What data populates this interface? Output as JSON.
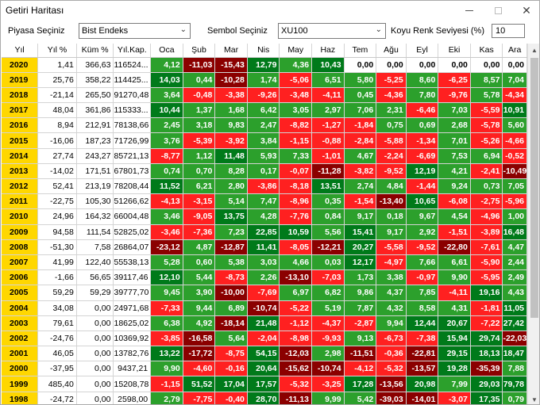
{
  "window": {
    "title": "Getiri Haritası"
  },
  "toolbar": {
    "market_label": "Piyasa Seçiniz",
    "market_value": "Bist Endeks",
    "symbol_label": "Sembol Seçiniz",
    "symbol_value": "XU100",
    "level_label": "Koyu Renk Seviyesi (%)",
    "level_value": "10"
  },
  "colors": {
    "year_bg": "#ffd700",
    "deep_green": "#007a1a",
    "green": "#2ca02c",
    "light_red": "#ff2020",
    "deep_red": "#8b0000",
    "zero": "#ffffff"
  },
  "table": {
    "headers": [
      "Yıl",
      "Yıl %",
      "Küm %",
      "Yıl.Kap.",
      "Oca",
      "Şub",
      "Mar",
      "Nis",
      "May",
      "Haz",
      "Tem",
      "Ağu",
      "Eyl",
      "Eki",
      "Kas",
      "Ara"
    ],
    "rows": [
      [
        "2020",
        "1,41",
        "366,63",
        "116524...",
        "4,12",
        "-11,03",
        "-15,43",
        "12,79",
        "4,36",
        "10,43",
        "0,00",
        "0,00",
        "0,00",
        "0,00",
        "0,00",
        "0,00"
      ],
      [
        "2019",
        "25,76",
        "358,22",
        "114425...",
        "14,03",
        "0,44",
        "-10,28",
        "1,74",
        "-5,06",
        "6,51",
        "5,80",
        "-5,25",
        "8,60",
        "-6,25",
        "8,57",
        "7,04"
      ],
      [
        "2018",
        "-21,14",
        "265,50",
        "91270,48",
        "3,64",
        "-0,48",
        "-3,38",
        "-9,26",
        "-3,48",
        "-4,11",
        "0,45",
        "-4,36",
        "7,80",
        "-9,76",
        "5,78",
        "-4,34"
      ],
      [
        "2017",
        "48,04",
        "361,86",
        "115333...",
        "10,44",
        "1,37",
        "1,68",
        "6,42",
        "3,05",
        "2,97",
        "7,06",
        "2,31",
        "-6,46",
        "7,03",
        "-5,59",
        "10,91"
      ],
      [
        "2016",
        "8,94",
        "212,91",
        "78138,66",
        "2,45",
        "3,18",
        "9,83",
        "2,47",
        "-8,82",
        "-1,27",
        "-1,84",
        "0,75",
        "0,69",
        "2,68",
        "-5,78",
        "5,60"
      ],
      [
        "2015",
        "-16,06",
        "187,23",
        "71726,99",
        "3,76",
        "-5,39",
        "-3,92",
        "3,84",
        "-1,15",
        "-0,88",
        "-2,84",
        "-5,88",
        "-1,34",
        "7,01",
        "-5,26",
        "-4,66"
      ],
      [
        "2014",
        "27,74",
        "243,27",
        "85721,13",
        "-8,77",
        "1,12",
        "11,48",
        "5,93",
        "7,33",
        "-1,01",
        "4,67",
        "-2,24",
        "-6,69",
        "7,53",
        "6,94",
        "-0,52"
      ],
      [
        "2013",
        "-14,02",
        "171,51",
        "67801,73",
        "0,74",
        "0,70",
        "8,28",
        "0,17",
        "-0,07",
        "-11,28",
        "-3,82",
        "-9,52",
        "12,19",
        "4,21",
        "-2,41",
        "-10,49"
      ],
      [
        "2012",
        "52,41",
        "213,19",
        "78208,44",
        "11,52",
        "6,21",
        "2,80",
        "-3,86",
        "-8,18",
        "13,51",
        "2,74",
        "4,84",
        "-1,44",
        "9,24",
        "0,73",
        "7,05"
      ],
      [
        "2011",
        "-22,75",
        "105,30",
        "51266,62",
        "-4,13",
        "-3,15",
        "5,14",
        "7,47",
        "-8,96",
        "0,35",
        "-1,54",
        "-13,40",
        "10,65",
        "-6,08",
        "-2,75",
        "-5,96"
      ],
      [
        "2010",
        "24,96",
        "164,32",
        "66004,48",
        "3,46",
        "-9,05",
        "13,75",
        "4,28",
        "-7,76",
        "0,84",
        "9,17",
        "0,18",
        "9,67",
        "4,54",
        "-4,96",
        "1,00"
      ],
      [
        "2009",
        "94,58",
        "111,54",
        "52825,02",
        "-3,46",
        "-7,36",
        "7,23",
        "22,85",
        "10,59",
        "5,56",
        "15,41",
        "9,17",
        "2,92",
        "-1,51",
        "-3,89",
        "16,48"
      ],
      [
        "2008",
        "-51,30",
        "7,58",
        "26864,07",
        "-23,12",
        "4,87",
        "-12,87",
        "11,41",
        "-8,05",
        "-12,21",
        "20,27",
        "-5,58",
        "-9,52",
        "-22,80",
        "-7,61",
        "4,47"
      ],
      [
        "2007",
        "41,99",
        "122,40",
        "55538,13",
        "5,28",
        "0,60",
        "5,38",
        "3,03",
        "4,66",
        "0,03",
        "12,17",
        "-4,97",
        "7,66",
        "6,61",
        "-5,90",
        "2,44"
      ],
      [
        "2006",
        "-1,66",
        "56,65",
        "39117,46",
        "12,10",
        "5,44",
        "-8,73",
        "2,26",
        "-13,10",
        "-7,03",
        "1,73",
        "3,38",
        "-0,97",
        "9,90",
        "-5,95",
        "2,49"
      ],
      [
        "2005",
        "59,29",
        "59,29",
        "39777,70",
        "9,45",
        "3,90",
        "-10,00",
        "-7,69",
        "6,97",
        "6,82",
        "9,86",
        "4,37",
        "7,85",
        "-4,11",
        "19,16",
        "4,43"
      ],
      [
        "2004",
        "34,08",
        "0,00",
        "24971,68",
        "-7,33",
        "9,44",
        "6,89",
        "-10,74",
        "-5,22",
        "5,19",
        "7,87",
        "4,32",
        "8,58",
        "4,31",
        "-1,81",
        "11,05"
      ],
      [
        "2003",
        "79,61",
        "0,00",
        "18625,02",
        "6,38",
        "4,92",
        "-18,14",
        "21,48",
        "-1,12",
        "-4,37",
        "-2,87",
        "9,94",
        "12,44",
        "20,67",
        "-7,22",
        "27,42"
      ],
      [
        "2002",
        "-24,76",
        "0,00",
        "10369,92",
        "-3,85",
        "-16,58",
        "5,64",
        "-2,04",
        "-8,98",
        "-9,93",
        "9,13",
        "-6,73",
        "-7,38",
        "15,94",
        "29,74",
        "-22,03"
      ],
      [
        "2001",
        "46,05",
        "0,00",
        "13782,76",
        "13,22",
        "-17,72",
        "-8,75",
        "54,15",
        "-12,03",
        "2,98",
        "-11,51",
        "-0,36",
        "-22,81",
        "29,15",
        "18,13",
        "18,47"
      ],
      [
        "2000",
        "-37,95",
        "0,00",
        "9437,21",
        "9,90",
        "-4,60",
        "-0,16",
        "20,64",
        "-15,62",
        "-10,74",
        "-4,12",
        "-5,32",
        "-13,57",
        "19,28",
        "-35,39",
        "7,88"
      ],
      [
        "1999",
        "485,40",
        "0,00",
        "15208,78",
        "-1,15",
        "51,52",
        "17,04",
        "17,57",
        "-5,32",
        "-3,25",
        "17,28",
        "-13,56",
        "20,98",
        "7,99",
        "29,03",
        "79,78"
      ],
      [
        "1998",
        "-24,72",
        "0,00",
        "2598,00",
        "2,79",
        "-7,75",
        "-0,40",
        "28,70",
        "-11,13",
        "9,99",
        "5,42",
        "-39,03",
        "-14,01",
        "-3,07",
        "17,35",
        "0,79"
      ]
    ]
  }
}
